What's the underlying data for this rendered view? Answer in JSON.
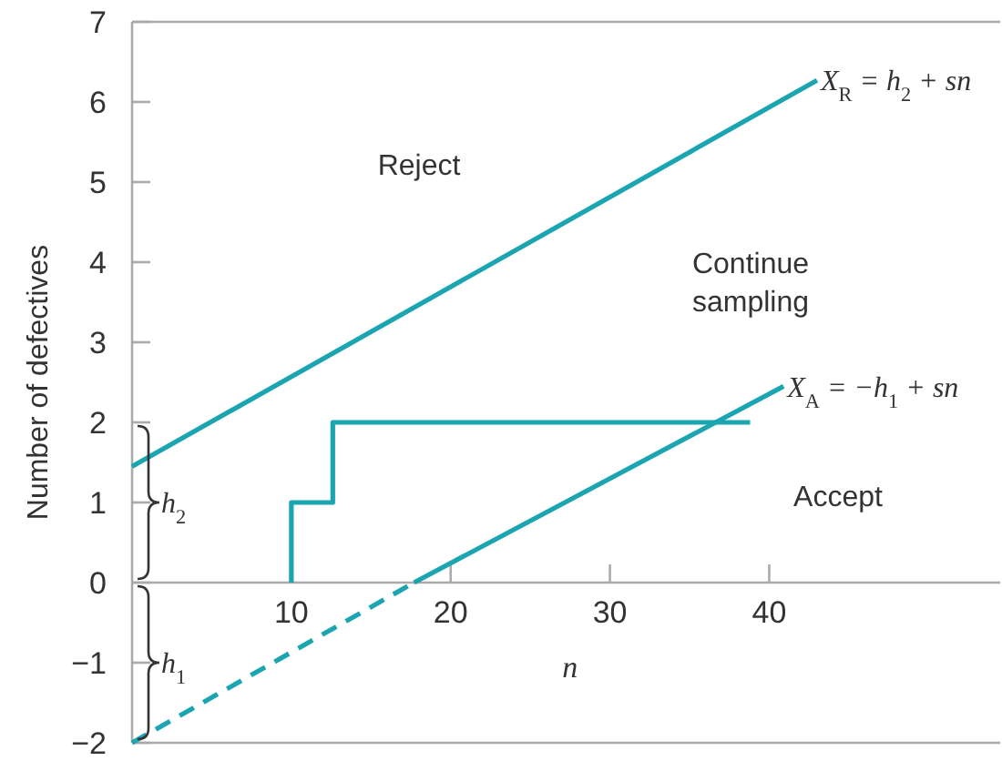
{
  "chart_data": {
    "type": "line",
    "xlabel": "n",
    "ylabel": "Number of defectives",
    "xlim": [
      0,
      54.5
    ],
    "ylim": [
      -2,
      7
    ],
    "xticks": [
      10,
      20,
      30,
      40
    ],
    "yticks": [
      {
        "value": -2,
        "label": "−2"
      },
      {
        "value": -1,
        "label": "−1"
      },
      0,
      1,
      2,
      3,
      4,
      5,
      6,
      7
    ],
    "grid": false,
    "marker": "none",
    "series": [
      {
        "color": "#1aa5b0",
        "x": [
          0,
          43
        ],
        "values": [
          1.45,
          6.27
        ],
        "line_style": "solid"
      },
      {
        "color": "#1aa5b0",
        "x": [
          0,
          17.7
        ],
        "values": [
          -2,
          0
        ],
        "line_style": "dashed"
      },
      {
        "color": "#1aa5b0",
        "x": [
          17.7,
          40.9
        ],
        "values": [
          0,
          2.45
        ],
        "line_style": "solid"
      },
      {
        "color": "#1aa5b0",
        "x": [
          10,
          10,
          12.6,
          12.6,
          38.8
        ],
        "values": [
          0,
          1,
          1,
          2,
          2
        ],
        "line_style": "solid"
      }
    ],
    "annotations": [
      {
        "text": "X$_{R}$ = h$_{2}$ + sn",
        "x": 43,
        "y": 6.27
      },
      {
        "text": "X$_{A}$ = −h$_{1}$ + sn",
        "x": 40.9,
        "y": 2.45
      },
      "h$_{2}$",
      "h$_{1}$",
      "Reject",
      "Continue sampling",
      "Accept"
    ]
  }
}
